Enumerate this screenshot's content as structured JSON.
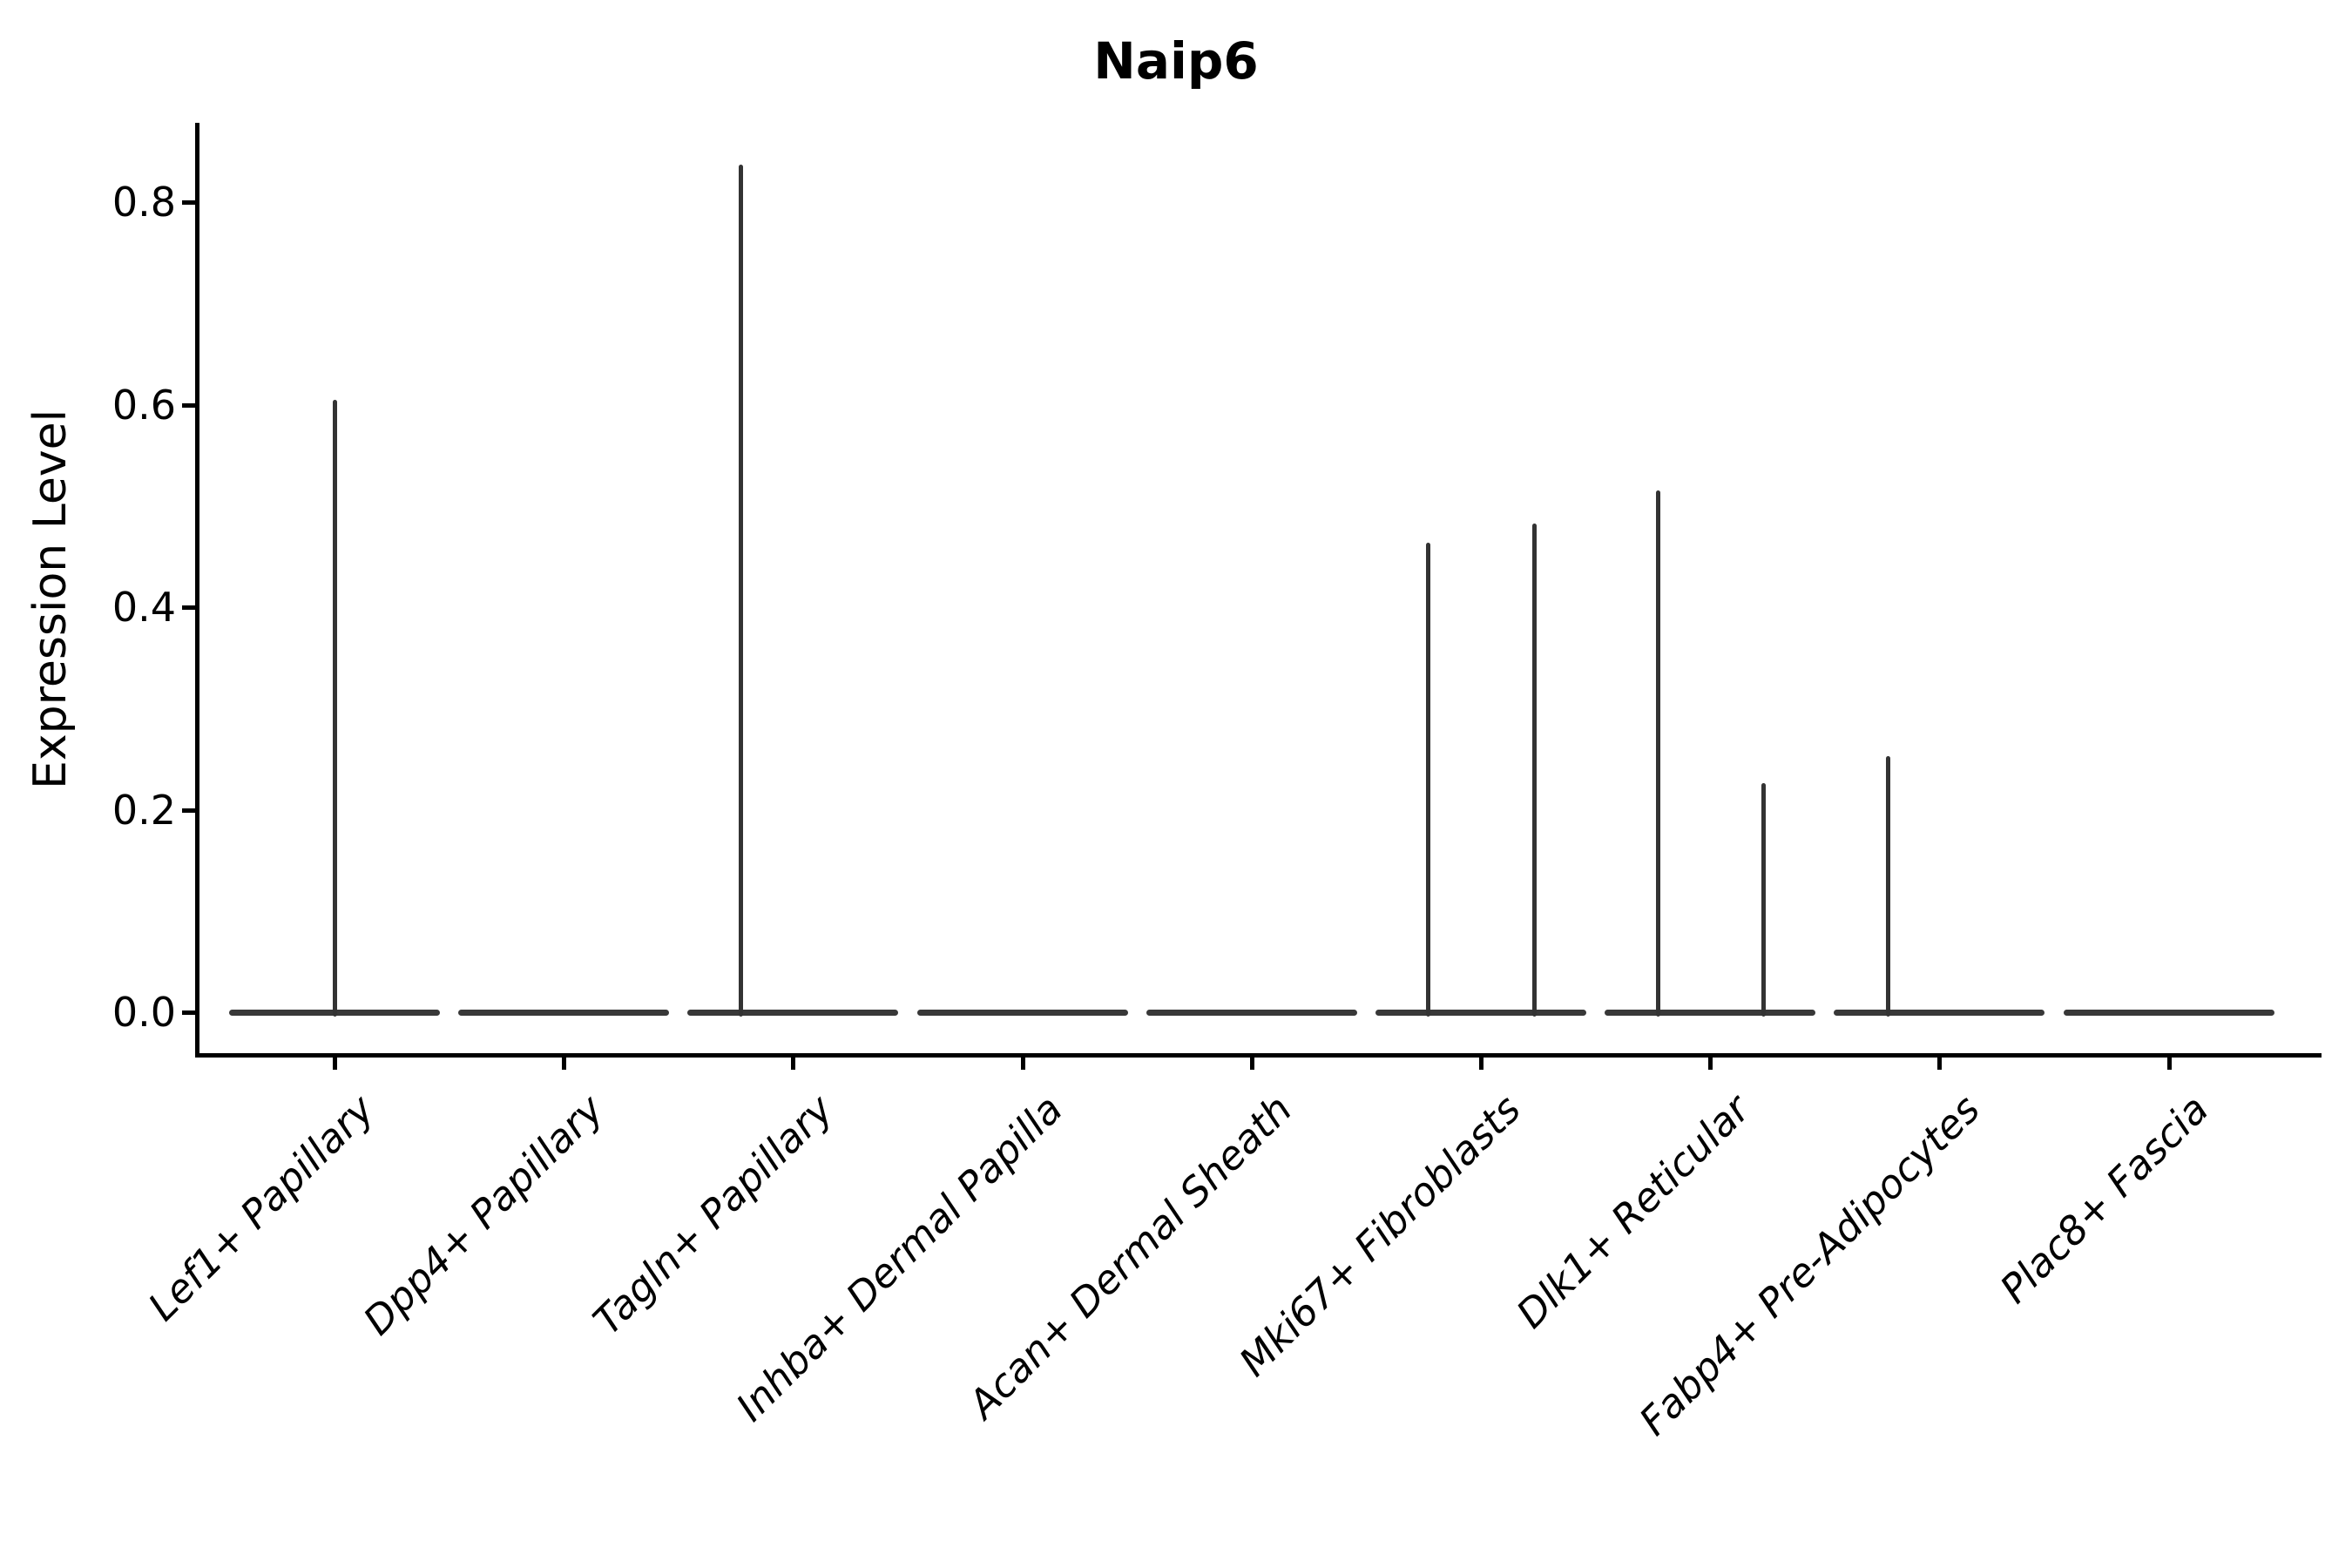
{
  "title": "Naip6",
  "colors": {
    "violin_line": "#333333",
    "axis": "#000000",
    "background": "#ffffff"
  },
  "chart_data": {
    "type": "violin",
    "title": "Naip6",
    "xlabel": "",
    "ylabel": "Expression Level",
    "ylim": [
      0,
      0.9
    ],
    "yticks": [
      0.0,
      0.2,
      0.4,
      0.6,
      0.8
    ],
    "grid": false,
    "legend": "none",
    "description": "Violin plot of Naip6 expression across 9 fibroblast cell-type clusters; nearly all cells are at 0 so each violin is a flat bar at 0 with thin vertical spikes reaching the few positive expression values.",
    "categories": [
      "Lef1+ Papillary",
      "Dpp4+ Papillary",
      "Tagln+ Papillary",
      "Inhba+ Dermal Papilla",
      "Acan+ Dermal Sheath",
      "Mki67+ Fibroblasts",
      "Dlk1+ Reticular",
      "Fabp4+ Pre-Adipocytes",
      "Plac8+ Fascia"
    ],
    "violins": [
      {
        "category": "Lef1+ Papillary",
        "baseline_value": 0,
        "spikes": [
          {
            "dx": 0.0,
            "peak": 0.605
          }
        ]
      },
      {
        "category": "Dpp4+ Papillary",
        "baseline_value": 0,
        "spikes": []
      },
      {
        "category": "Tagln+ Papillary",
        "baseline_value": 0,
        "spikes": [
          {
            "dx": -0.23,
            "peak": 0.837
          }
        ]
      },
      {
        "category": "Inhba+ Dermal Papilla",
        "baseline_value": 0,
        "spikes": []
      },
      {
        "category": "Acan+ Dermal Sheath",
        "baseline_value": 0,
        "spikes": []
      },
      {
        "category": "Mki67+ Fibroblasts",
        "baseline_value": 0,
        "spikes": [
          {
            "dx": -0.23,
            "peak": 0.464
          },
          {
            "dx": 0.23,
            "peak": 0.483
          }
        ]
      },
      {
        "category": "Dlk1+ Reticular",
        "baseline_value": 0,
        "spikes": [
          {
            "dx": -0.23,
            "peak": 0.515
          },
          {
            "dx": 0.23,
            "peak": 0.226
          }
        ]
      },
      {
        "category": "Fabp4+ Pre-Adipocytes",
        "baseline_value": 0,
        "spikes": [
          {
            "dx": -0.225,
            "peak": 0.253
          }
        ]
      },
      {
        "category": "Plac8+ Fascia",
        "baseline_value": 0,
        "spikes": []
      }
    ]
  }
}
